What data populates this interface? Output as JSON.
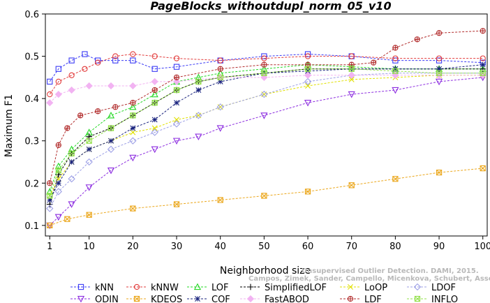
{
  "chart_data": {
    "type": "line",
    "title": "PageBlocks_withoutdupl_norm_05_v10",
    "xlabel": "Neighborhood size",
    "ylabel": "Maximum F1",
    "xlim": [
      0,
      101
    ],
    "ylim": [
      0.075,
      0.6
    ],
    "xticks": [
      "1",
      "10",
      "20",
      "30",
      "40",
      "50",
      "60",
      "70",
      "80",
      "90",
      "100"
    ],
    "yticks": [
      "0.1",
      "0.2",
      "0.3",
      "0.4",
      "0.5",
      "0.6"
    ],
    "grid": false,
    "legend_position": "bottom",
    "watermark": "Campos, Zimek, Sander, Campello, Micenkova, Schubert, Assent, Houle",
    "watermark2": "Unsupervised Outlier Detection. DAMI, 2015.",
    "series": [
      {
        "name": "kNN",
        "color": "#3b3bf5",
        "marker": "square",
        "x": [
          1,
          3,
          6,
          9,
          12,
          16,
          20,
          25,
          30,
          40,
          50,
          60,
          70,
          80,
          90,
          100
        ],
        "y": [
          0.44,
          0.47,
          0.49,
          0.505,
          0.49,
          0.49,
          0.49,
          0.47,
          0.475,
          0.49,
          0.5,
          0.505,
          0.5,
          0.49,
          0.49,
          0.485
        ]
      },
      {
        "name": "kNNW",
        "color": "#e23b3b",
        "marker": "circle",
        "x": [
          1,
          3,
          6,
          9,
          12,
          16,
          20,
          25,
          30,
          40,
          50,
          60,
          70,
          80,
          90,
          100
        ],
        "y": [
          0.41,
          0.44,
          0.455,
          0.47,
          0.485,
          0.5,
          0.505,
          0.5,
          0.495,
          0.49,
          0.495,
          0.5,
          0.5,
          0.495,
          0.495,
          0.495
        ]
      },
      {
        "name": "LOF",
        "color": "#25d825",
        "marker": "triangle-up",
        "x": [
          1,
          3,
          6,
          10,
          15,
          20,
          25,
          30,
          35,
          40,
          50,
          60,
          70,
          80,
          90,
          100
        ],
        "y": [
          0.18,
          0.24,
          0.28,
          0.32,
          0.36,
          0.38,
          0.41,
          0.44,
          0.45,
          0.46,
          0.47,
          0.48,
          0.475,
          0.47,
          0.47,
          0.47
        ]
      },
      {
        "name": "SimplifiedLOF",
        "color": "#000000",
        "marker": "plus",
        "x": [
          1,
          3,
          6,
          10,
          15,
          20,
          25,
          30,
          35,
          40,
          50,
          60,
          70,
          80,
          90,
          100
        ],
        "y": [
          0.15,
          0.22,
          0.27,
          0.31,
          0.33,
          0.36,
          0.39,
          0.42,
          0.44,
          0.45,
          0.46,
          0.47,
          0.47,
          0.47,
          0.47,
          0.47
        ]
      },
      {
        "name": "LoOP",
        "color": "#e0e000",
        "marker": "cross",
        "x": [
          1,
          3,
          6,
          10,
          15,
          20,
          25,
          30,
          35,
          40,
          50,
          60,
          70,
          80,
          90,
          100
        ],
        "y": [
          0.17,
          0.21,
          0.25,
          0.28,
          0.3,
          0.32,
          0.33,
          0.35,
          0.36,
          0.38,
          0.41,
          0.43,
          0.445,
          0.45,
          0.455,
          0.455
        ]
      },
      {
        "name": "LDOF",
        "color": "#9da0e6",
        "marker": "diamond",
        "x": [
          1,
          3,
          6,
          10,
          15,
          20,
          25,
          30,
          35,
          40,
          50,
          60,
          70,
          80,
          90,
          100
        ],
        "y": [
          0.14,
          0.18,
          0.21,
          0.25,
          0.28,
          0.3,
          0.32,
          0.34,
          0.36,
          0.38,
          0.41,
          0.44,
          0.455,
          0.46,
          0.46,
          0.46
        ]
      },
      {
        "name": "ODIN",
        "color": "#8d2ee0",
        "marker": "triangle-down",
        "x": [
          1,
          3,
          6,
          10,
          15,
          20,
          25,
          30,
          35,
          40,
          50,
          60,
          70,
          80,
          90,
          100
        ],
        "y": [
          0.1,
          0.12,
          0.15,
          0.19,
          0.23,
          0.26,
          0.28,
          0.3,
          0.31,
          0.33,
          0.36,
          0.39,
          0.41,
          0.42,
          0.44,
          0.45
        ]
      },
      {
        "name": "KDEOS",
        "color": "#eba71c",
        "marker": "square-x",
        "x": [
          1,
          5,
          10,
          20,
          30,
          40,
          50,
          60,
          70,
          80,
          90,
          100
        ],
        "y": [
          0.1,
          0.115,
          0.125,
          0.14,
          0.15,
          0.16,
          0.17,
          0.18,
          0.195,
          0.21,
          0.225,
          0.235
        ]
      },
      {
        "name": "COF",
        "color": "#1a237e",
        "marker": "star",
        "x": [
          1,
          3,
          6,
          10,
          15,
          20,
          25,
          30,
          35,
          40,
          50,
          60,
          70,
          80,
          90,
          100
        ],
        "y": [
          0.16,
          0.2,
          0.25,
          0.28,
          0.3,
          0.33,
          0.35,
          0.39,
          0.42,
          0.44,
          0.46,
          0.465,
          0.47,
          0.47,
          0.47,
          0.48
        ]
      },
      {
        "name": "FastABOD",
        "color": "#f2b3f2",
        "marker": "diamond-filled",
        "x": [
          1,
          3,
          6,
          10,
          15,
          20,
          25,
          30,
          40,
          50,
          60,
          70,
          80,
          90,
          100
        ],
        "y": [
          0.39,
          0.41,
          0.42,
          0.43,
          0.43,
          0.43,
          0.44,
          0.44,
          0.45,
          0.45,
          0.455,
          0.455,
          0.455,
          0.455,
          0.455
        ]
      },
      {
        "name": "LDF",
        "color": "#b22d2d",
        "marker": "circle-plus",
        "x": [
          1,
          3,
          5,
          8,
          12,
          16,
          20,
          25,
          30,
          40,
          50,
          60,
          70,
          75,
          80,
          85,
          90,
          100
        ],
        "y": [
          0.2,
          0.29,
          0.33,
          0.36,
          0.37,
          0.38,
          0.39,
          0.42,
          0.45,
          0.47,
          0.48,
          0.48,
          0.48,
          0.485,
          0.52,
          0.54,
          0.555,
          0.56
        ]
      },
      {
        "name": "INFLO",
        "color": "#92e04a",
        "marker": "square-x",
        "x": [
          1,
          3,
          6,
          10,
          15,
          20,
          25,
          30,
          35,
          40,
          50,
          60,
          70,
          80,
          90,
          100
        ],
        "y": [
          0.17,
          0.23,
          0.27,
          0.3,
          0.33,
          0.36,
          0.39,
          0.42,
          0.44,
          0.45,
          0.46,
          0.47,
          0.47,
          0.465,
          0.46,
          0.46
        ]
      }
    ],
    "legend_rows": [
      [
        "kNN",
        "kNNW",
        "LOF",
        "SimplifiedLOF",
        "LoOP",
        "LDOF"
      ],
      [
        "ODIN",
        "KDEOS",
        "COF",
        "FastABOD",
        "LDF",
        "INFLO"
      ]
    ]
  }
}
